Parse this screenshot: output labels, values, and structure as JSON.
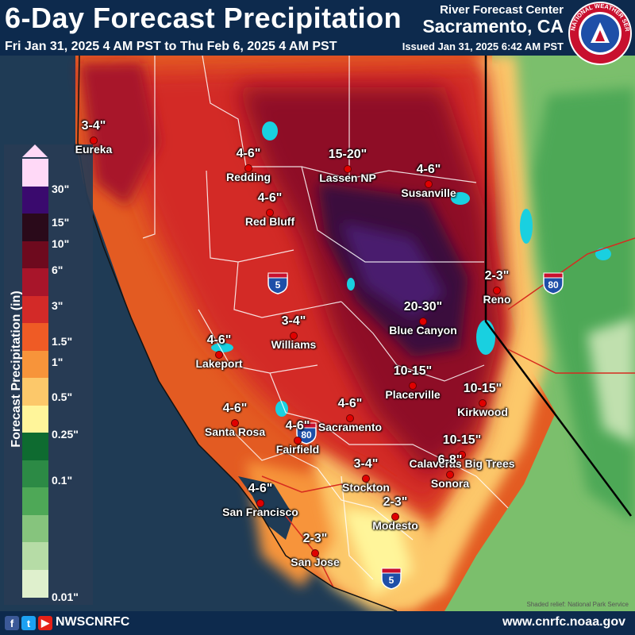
{
  "header": {
    "title": "6-Day Forecast Precipitation",
    "date_range": "Fri Jan 31, 2025 4 AM PST to Thu Feb 6, 2025 4 AM PST",
    "center": "River Forecast Center",
    "office": "Sacramento, CA",
    "issued": "Issued Jan 31, 2025 6:42 AM PST"
  },
  "logo": {
    "icon": "nws-logo-icon",
    "text": "NATIONAL WEATHER SERVICE"
  },
  "legend": {
    "title": "Forecast Precipitation (in)",
    "ticks": [
      "30\"",
      "15\"",
      "10\"",
      "6\"",
      "3\"",
      "1.5\"",
      "1\"",
      "0.5\"",
      "0.25\"",
      "0.1\"",
      "0.01\""
    ],
    "colors": [
      "#ffd9f7",
      "#3a0a6e",
      "#2a0a1a",
      "#6e0a1e",
      "#a8152a",
      "#d32a28",
      "#ef5b25",
      "#f7943a",
      "#fcc86a",
      "#fff59a",
      "#0e6b30",
      "#2c8a45",
      "#4ea857",
      "#86c47d",
      "#b6dca6",
      "#dff0cd"
    ]
  },
  "cities": [
    {
      "name": "Eureka",
      "amount": "3-4\""
    },
    {
      "name": "Redding",
      "amount": "4-6\""
    },
    {
      "name": "Lassen NP",
      "amount": "15-20\""
    },
    {
      "name": "Susanville",
      "amount": "4-6\""
    },
    {
      "name": "Red Bluff",
      "amount": "4-6\""
    },
    {
      "name": "Reno",
      "amount": "2-3\""
    },
    {
      "name": "Blue Canyon",
      "amount": "20-30\""
    },
    {
      "name": "Williams",
      "amount": "3-4\""
    },
    {
      "name": "Lakeport",
      "amount": "4-6\""
    },
    {
      "name": "Placerville",
      "amount": "10-15\""
    },
    {
      "name": "Kirkwood",
      "amount": "10-15\""
    },
    {
      "name": "Sacramento",
      "amount": "4-6\""
    },
    {
      "name": "Santa Rosa",
      "amount": "4-6\""
    },
    {
      "name": "Fairfield",
      "amount": "4-6\""
    },
    {
      "name": "Calaveras Big Trees",
      "amount": "10-15\""
    },
    {
      "name": "Sonora",
      "amount": "6-8\""
    },
    {
      "name": "Stockton",
      "amount": "3-4\""
    },
    {
      "name": "San Francisco",
      "amount": "4-6\""
    },
    {
      "name": "Modesto",
      "amount": "2-3\""
    },
    {
      "name": "San Jose",
      "amount": "2-3\""
    }
  ],
  "interstates": [
    "5",
    "80",
    "80",
    "5"
  ],
  "footer": {
    "social_icons": [
      "facebook-icon",
      "twitter-icon",
      "youtube-icon"
    ],
    "social": [
      "f",
      "t",
      "▶"
    ],
    "handle": "NWSCNRFC",
    "url": "www.cnrfc.noaa.gov",
    "credit": "Shaded relief: National Park Service"
  }
}
